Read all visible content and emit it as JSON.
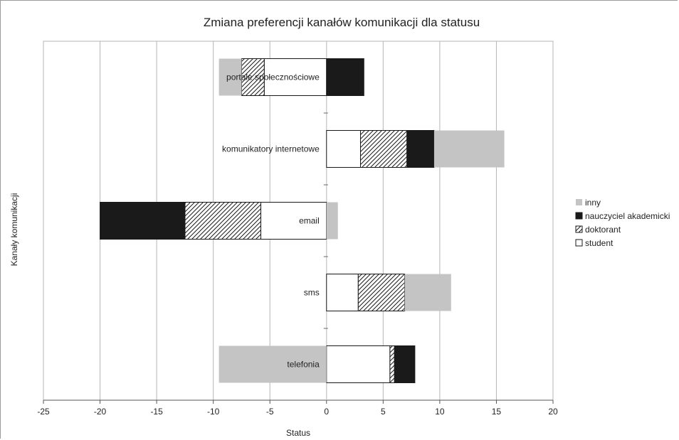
{
  "chart_data": {
    "type": "bar",
    "orientation": "horizontal",
    "stacked": true,
    "title": "Zmiana preferencji kanałów komunikacji dla statusu",
    "xlabel": "Status",
    "ylabel": "Kanały komunikacji",
    "xlim": [
      -25,
      20
    ],
    "xticks": [
      "-25",
      "-20",
      "-15",
      "-10",
      "-5",
      "0",
      "5",
      "10",
      "15",
      "20"
    ],
    "grid": true,
    "legend_position": "right",
    "categories": [
      "portale społecznościowe",
      "komunikatory internetowe",
      "email",
      "sms",
      "telefonia"
    ],
    "series": [
      {
        "name": "student",
        "pattern": "white",
        "values": [
          -5.5,
          3.0,
          -5.8,
          2.8,
          5.6
        ]
      },
      {
        "name": "doktorant",
        "pattern": "hatch",
        "values": [
          -2.0,
          4.1,
          -6.7,
          4.1,
          0.4
        ]
      },
      {
        "name": "nauczyciel akademicki",
        "pattern": "black",
        "values": [
          3.3,
          2.4,
          -7.5,
          0.0,
          1.8
        ]
      },
      {
        "name": "inny",
        "pattern": "gray",
        "values": [
          -2.0,
          6.2,
          1.0,
          4.1,
          -9.5
        ]
      }
    ],
    "legend_order": [
      "inny",
      "nauczyciel akademicki",
      "doktorant",
      "student"
    ],
    "colors": {
      "black": "#1a1a1a",
      "gray": "#c4c4c4",
      "white": "#ffffff",
      "grid": "#b5b5b5"
    }
  }
}
